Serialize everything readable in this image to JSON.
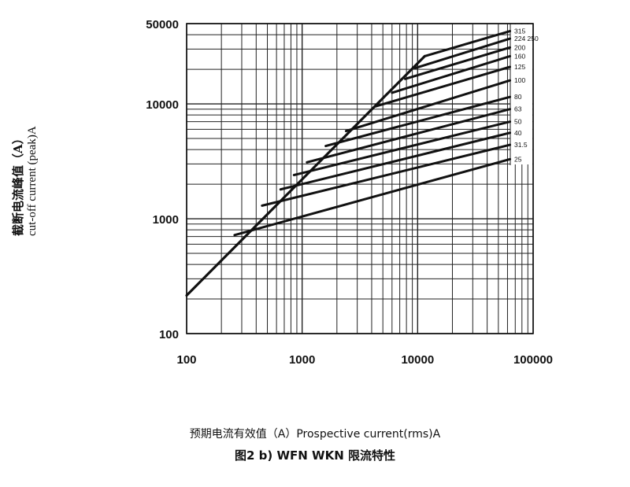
{
  "chart_data": {
    "type": "line",
    "xscale": "log",
    "yscale": "log",
    "xlim": [
      100,
      100000
    ],
    "ylim": [
      100,
      50000
    ],
    "grid": true,
    "title": "",
    "xlabel": "预期电流有效值（A）Prospective current(rms)A",
    "ylabel_cn": "截断电流峰值（A）",
    "ylabel_en": "cut-off current (peak)A",
    "caption": "图2 b) WFN WKN 限流特性",
    "x_ticks": [
      "100",
      "1000",
      "10000",
      "100000"
    ],
    "y_ticks": [
      "100",
      "1000",
      "10000",
      "50000"
    ],
    "envelope": {
      "x": [
        100,
        11500
      ],
      "y": [
        215,
        26000
      ]
    },
    "series": [
      {
        "name": "315",
        "x": [
          11500,
          63000
        ],
        "y": [
          26000,
          43000
        ]
      },
      {
        "name": "224 250",
        "x": [
          9500,
          63000
        ],
        "y": [
          20500,
          37000
        ]
      },
      {
        "name": "200",
        "x": [
          7800,
          63000
        ],
        "y": [
          16500,
          31000
        ]
      },
      {
        "name": "160",
        "x": [
          6000,
          63000
        ],
        "y": [
          12500,
          26000
        ]
      },
      {
        "name": "125",
        "x": [
          4300,
          63000
        ],
        "y": [
          9500,
          21000
        ]
      },
      {
        "name": "100",
        "x": [
          2400,
          63000
        ],
        "y": [
          5800,
          16000
        ]
      },
      {
        "name": "80",
        "x": [
          1600,
          63000
        ],
        "y": [
          4300,
          11500
        ]
      },
      {
        "name": "63",
        "x": [
          1100,
          63000
        ],
        "y": [
          3100,
          9000
        ]
      },
      {
        "name": "50",
        "x": [
          850,
          63000
        ],
        "y": [
          2400,
          7000
        ]
      },
      {
        "name": "40",
        "x": [
          650,
          63000
        ],
        "y": [
          1800,
          5600
        ]
      },
      {
        "name": "31.5",
        "x": [
          450,
          63000
        ],
        "y": [
          1300,
          4400
        ]
      },
      {
        "name": "25",
        "x": [
          260,
          63000
        ],
        "y": [
          720,
          3300
        ]
      }
    ]
  }
}
